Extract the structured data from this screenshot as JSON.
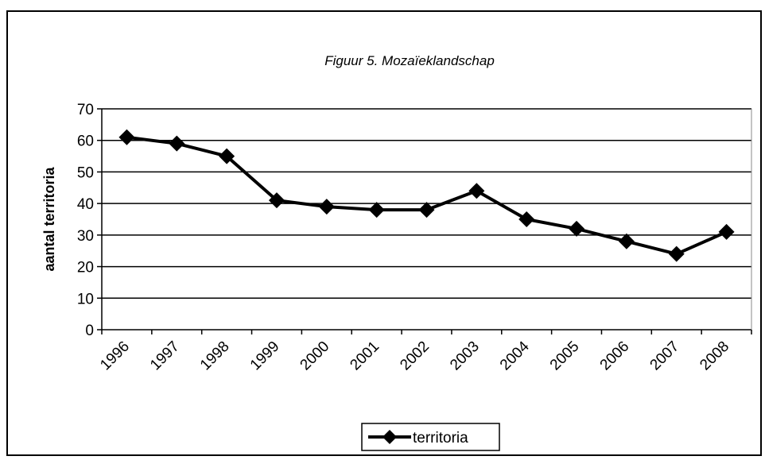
{
  "chart_data": {
    "type": "line",
    "title": "Figuur 5. Mozaïeklandschap",
    "y_label": "aantal territoria",
    "categories": [
      "1996",
      "1997",
      "1998",
      "1999",
      "2000",
      "2001",
      "2002",
      "2003",
      "2004",
      "2005",
      "2006",
      "2007",
      "2008"
    ],
    "series": [
      {
        "name": "territoria",
        "color": "#000000",
        "values": [
          61,
          59,
          55,
          41,
          39,
          38,
          38,
          44,
          35,
          32,
          28,
          24,
          31
        ]
      }
    ],
    "ylim": [
      0,
      70
    ],
    "yticks": [
      0,
      10,
      20,
      30,
      40,
      50,
      60,
      70
    ],
    "grid": true,
    "legend": "bottom"
  }
}
